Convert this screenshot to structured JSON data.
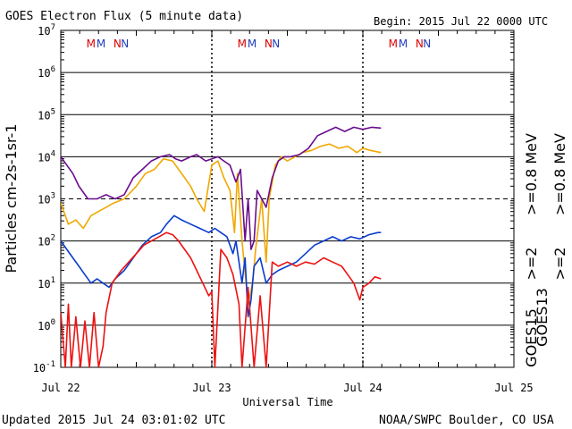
{
  "header": {
    "title": "GOES Electron Flux (5 minute data)",
    "begin": "Begin: 2015 Jul 22 0000 UTC"
  },
  "footer": {
    "updated": "Updated 2015 Jul 24 03:01:02 UTC",
    "source": "NOAA/SWPC Boulder, CO USA"
  },
  "legend": {
    "goes13_label": "GOES13",
    "goes15_label": "GOES15",
    "g13_high": ">=0.8 MeV",
    "g13_low": ">=2",
    "g15_high": ">=0.8 MeV",
    "g15_low": ">=2"
  },
  "colors": {
    "purple": "#6a0d8e",
    "orange": "#f0a800",
    "blue": "#0a3ccc",
    "red": "#ee1111",
    "marker_m_red": "#dd0000",
    "marker_m_blue": "#1f3fbf",
    "marker_n_red": "#dd0000",
    "marker_n_blue": "#1f3fbf"
  },
  "chart_data": {
    "type": "line",
    "title": "GOES Electron Flux (5 minute data)",
    "xlabel": "Universal Time",
    "ylabel": "Particles cm-2s-1sr-1",
    "y_scale": "log",
    "ylim_exp": [
      -1,
      7
    ],
    "y_tick_exponents": [
      -1,
      0,
      1,
      2,
      3,
      4,
      5,
      6,
      7
    ],
    "x_ticks": [
      "Jul 22",
      "Jul 23",
      "Jul 24",
      "Jul 25"
    ],
    "x_range_days": [
      0,
      3
    ],
    "day_markers": [
      {
        "day": 0,
        "labels": [
          {
            "t": "M",
            "c": "marker_m_red"
          },
          {
            "t": "M",
            "c": "marker_m_blue"
          },
          {
            "t": "N",
            "c": "marker_n_red"
          },
          {
            "t": "N",
            "c": "marker_n_blue"
          }
        ]
      },
      {
        "day": 1,
        "labels": [
          {
            "t": "M",
            "c": "marker_m_red"
          },
          {
            "t": "M",
            "c": "marker_m_blue"
          },
          {
            "t": "N",
            "c": "marker_n_red"
          },
          {
            "t": "N",
            "c": "marker_n_blue"
          }
        ]
      },
      {
        "day": 2,
        "labels": [
          {
            "t": "M",
            "c": "marker_m_red"
          },
          {
            "t": "M",
            "c": "marker_m_blue"
          },
          {
            "t": "N",
            "c": "marker_n_red"
          },
          {
            "t": "N",
            "c": "marker_n_blue"
          }
        ]
      }
    ],
    "series": [
      {
        "name": "GOES13 >=0.8 MeV",
        "color_key": "orange",
        "points": [
          [
            0,
            2.9
          ],
          [
            0.05,
            2.4
          ],
          [
            0.1,
            2.5
          ],
          [
            0.15,
            2.3
          ],
          [
            0.2,
            2.6
          ],
          [
            0.25,
            2.7
          ],
          [
            0.3,
            2.8
          ],
          [
            0.35,
            2.9
          ],
          [
            0.42,
            3.0
          ],
          [
            0.5,
            3.3
          ],
          [
            0.56,
            3.6
          ],
          [
            0.62,
            3.7
          ],
          [
            0.68,
            3.95
          ],
          [
            0.74,
            3.9
          ],
          [
            0.78,
            3.7
          ],
          [
            0.82,
            3.5
          ],
          [
            0.86,
            3.3
          ],
          [
            0.9,
            3.0
          ],
          [
            0.95,
            2.7
          ],
          [
            1.0,
            3.8
          ],
          [
            1.04,
            3.9
          ],
          [
            1.08,
            3.5
          ],
          [
            1.12,
            3.2
          ],
          [
            1.15,
            2.2
          ],
          [
            1.17,
            3.6
          ],
          [
            1.2,
            2.0
          ],
          [
            1.24,
            0.5
          ],
          [
            1.27,
            1.0
          ],
          [
            1.29,
            1.8
          ],
          [
            1.33,
            3.0
          ],
          [
            1.36,
            1.5
          ],
          [
            1.38,
            3.0
          ],
          [
            1.42,
            3.8
          ],
          [
            1.46,
            4.0
          ],
          [
            1.5,
            3.9
          ],
          [
            1.55,
            4.0
          ],
          [
            1.6,
            4.1
          ],
          [
            1.66,
            4.15
          ],
          [
            1.72,
            4.25
          ],
          [
            1.78,
            4.3
          ],
          [
            1.84,
            4.2
          ],
          [
            1.9,
            4.25
          ],
          [
            1.96,
            4.1
          ],
          [
            2.0,
            4.2
          ],
          [
            2.05,
            4.15
          ],
          [
            2.12,
            4.1
          ]
        ]
      },
      {
        "name": "GOES15 >=0.8 MeV",
        "color_key": "purple",
        "points": [
          [
            0,
            4.0
          ],
          [
            0.04,
            3.8
          ],
          [
            0.08,
            3.6
          ],
          [
            0.12,
            3.3
          ],
          [
            0.18,
            3.0
          ],
          [
            0.24,
            3.0
          ],
          [
            0.3,
            3.1
          ],
          [
            0.36,
            3.0
          ],
          [
            0.42,
            3.1
          ],
          [
            0.48,
            3.5
          ],
          [
            0.54,
            3.7
          ],
          [
            0.6,
            3.9
          ],
          [
            0.66,
            4.0
          ],
          [
            0.72,
            4.05
          ],
          [
            0.76,
            3.95
          ],
          [
            0.8,
            3.9
          ],
          [
            0.86,
            4.0
          ],
          [
            0.9,
            4.05
          ],
          [
            0.96,
            3.9
          ],
          [
            1.0,
            3.95
          ],
          [
            1.04,
            4.0
          ],
          [
            1.08,
            3.9
          ],
          [
            1.12,
            3.8
          ],
          [
            1.16,
            3.4
          ],
          [
            1.19,
            3.7
          ],
          [
            1.22,
            2.0
          ],
          [
            1.24,
            3.0
          ],
          [
            1.26,
            1.8
          ],
          [
            1.28,
            2.0
          ],
          [
            1.3,
            3.2
          ],
          [
            1.33,
            3.0
          ],
          [
            1.36,
            2.8
          ],
          [
            1.4,
            3.5
          ],
          [
            1.44,
            3.9
          ],
          [
            1.48,
            4.0
          ],
          [
            1.52,
            4.0
          ],
          [
            1.58,
            4.05
          ],
          [
            1.64,
            4.2
          ],
          [
            1.7,
            4.5
          ],
          [
            1.76,
            4.6
          ],
          [
            1.82,
            4.7
          ],
          [
            1.88,
            4.6
          ],
          [
            1.94,
            4.7
          ],
          [
            2.0,
            4.65
          ],
          [
            2.06,
            4.7
          ],
          [
            2.12,
            4.68
          ]
        ]
      },
      {
        "name": "GOES15 >=2",
        "color_key": "blue",
        "points": [
          [
            0,
            2.0
          ],
          [
            0.04,
            1.8
          ],
          [
            0.08,
            1.6
          ],
          [
            0.12,
            1.4
          ],
          [
            0.16,
            1.2
          ],
          [
            0.2,
            1.0
          ],
          [
            0.24,
            1.1
          ],
          [
            0.28,
            1.0
          ],
          [
            0.32,
            0.9
          ],
          [
            0.36,
            1.1
          ],
          [
            0.42,
            1.3
          ],
          [
            0.48,
            1.6
          ],
          [
            0.54,
            1.9
          ],
          [
            0.6,
            2.1
          ],
          [
            0.66,
            2.2
          ],
          [
            0.7,
            2.4
          ],
          [
            0.75,
            2.6
          ],
          [
            0.8,
            2.5
          ],
          [
            0.86,
            2.4
          ],
          [
            0.92,
            2.3
          ],
          [
            0.98,
            2.2
          ],
          [
            1.02,
            2.3
          ],
          [
            1.06,
            2.2
          ],
          [
            1.1,
            2.1
          ],
          [
            1.14,
            1.7
          ],
          [
            1.16,
            2.0
          ],
          [
            1.2,
            1.0
          ],
          [
            1.22,
            1.6
          ],
          [
            1.24,
            0.2
          ],
          [
            1.26,
            0.6
          ],
          [
            1.28,
            1.4
          ],
          [
            1.32,
            1.6
          ],
          [
            1.36,
            1.0
          ],
          [
            1.4,
            1.2
          ],
          [
            1.44,
            1.3
          ],
          [
            1.5,
            1.4
          ],
          [
            1.56,
            1.5
          ],
          [
            1.62,
            1.7
          ],
          [
            1.68,
            1.9
          ],
          [
            1.74,
            2.0
          ],
          [
            1.8,
            2.1
          ],
          [
            1.86,
            2.0
          ],
          [
            1.92,
            2.1
          ],
          [
            1.98,
            2.05
          ],
          [
            2.04,
            2.15
          ],
          [
            2.1,
            2.2
          ],
          [
            2.12,
            2.2
          ]
        ]
      },
      {
        "name": "GOES13 >=2",
        "color_key": "red",
        "points": [
          [
            0,
            0.3
          ],
          [
            0.03,
            -1
          ],
          [
            0.05,
            0.5
          ],
          [
            0.07,
            -1
          ],
          [
            0.1,
            0.2
          ],
          [
            0.13,
            -1
          ],
          [
            0.16,
            0.1
          ],
          [
            0.19,
            -1
          ],
          [
            0.22,
            0.3
          ],
          [
            0.25,
            -1
          ],
          [
            0.28,
            -0.5
          ],
          [
            0.3,
            0.3
          ],
          [
            0.34,
            1.0
          ],
          [
            0.4,
            1.3
          ],
          [
            0.45,
            1.5
          ],
          [
            0.5,
            1.7
          ],
          [
            0.55,
            1.9
          ],
          [
            0.6,
            2.0
          ],
          [
            0.65,
            2.1
          ],
          [
            0.7,
            2.2
          ],
          [
            0.74,
            2.15
          ],
          [
            0.78,
            2.0
          ],
          [
            0.82,
            1.8
          ],
          [
            0.86,
            1.6
          ],
          [
            0.9,
            1.3
          ],
          [
            0.94,
            1.0
          ],
          [
            0.98,
            0.7
          ],
          [
            1.0,
            0.8
          ],
          [
            1.02,
            -1
          ],
          [
            1.06,
            1.8
          ],
          [
            1.1,
            1.6
          ],
          [
            1.14,
            1.2
          ],
          [
            1.18,
            0.5
          ],
          [
            1.2,
            -1
          ],
          [
            1.24,
            0.9
          ],
          [
            1.28,
            -1
          ],
          [
            1.32,
            0.7
          ],
          [
            1.36,
            -1
          ],
          [
            1.4,
            1.5
          ],
          [
            1.44,
            1.4
          ],
          [
            1.5,
            1.5
          ],
          [
            1.56,
            1.4
          ],
          [
            1.62,
            1.5
          ],
          [
            1.68,
            1.45
          ],
          [
            1.74,
            1.6
          ],
          [
            1.8,
            1.5
          ],
          [
            1.86,
            1.4
          ],
          [
            1.9,
            1.2
          ],
          [
            1.94,
            1.0
          ],
          [
            1.98,
            0.6
          ],
          [
            2.0,
            0.9
          ],
          [
            2.04,
            1.0
          ],
          [
            2.08,
            1.15
          ],
          [
            2.12,
            1.1
          ]
        ]
      }
    ]
  }
}
